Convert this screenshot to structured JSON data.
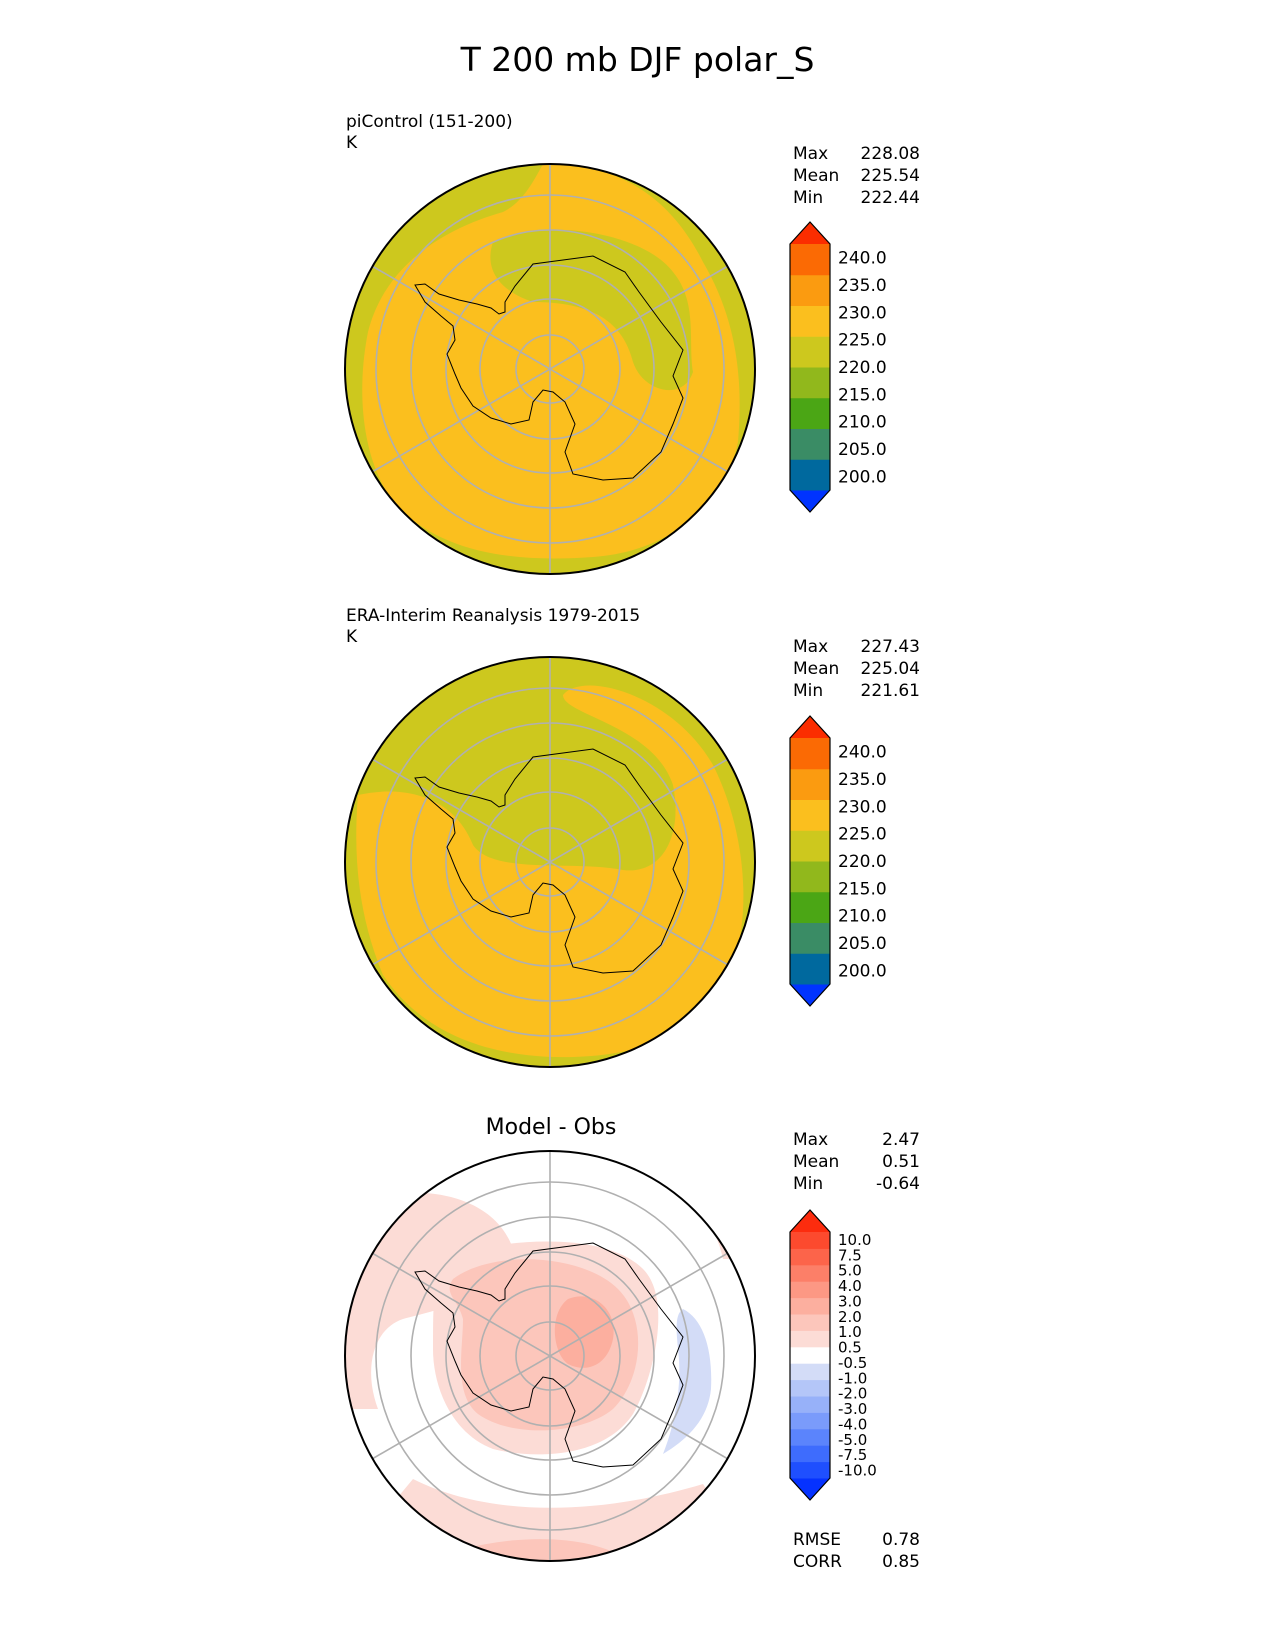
{
  "figure": {
    "title": "T 200 mb DJF polar_S"
  },
  "panels": [
    {
      "title": "piControl (151-200)",
      "units": "K",
      "stats": [
        {
          "label": "Max",
          "value": "228.08"
        },
        {
          "label": "Mean",
          "value": "225.54"
        },
        {
          "label": "Min",
          "value": "222.44"
        }
      ],
      "colorbar": {
        "labels": [
          "240.0",
          "235.0",
          "230.0",
          "225.0",
          "220.0",
          "215.0",
          "210.0",
          "205.0",
          "200.0"
        ],
        "colors": [
          "#0033ff",
          "#00699e",
          "#3a8c65",
          "#4ba615",
          "#91b81c",
          "#cdc81e",
          "#fbbf1e",
          "#fb9b10",
          "#fb6a04",
          "#fb2d00"
        ]
      }
    },
    {
      "title": "ERA-Interim Reanalysis 1979-2015",
      "units": "K",
      "stats": [
        {
          "label": "Max",
          "value": "227.43"
        },
        {
          "label": "Mean",
          "value": "225.04"
        },
        {
          "label": "Min",
          "value": "221.61"
        }
      ],
      "colorbar": {
        "labels": [
          "240.0",
          "235.0",
          "230.0",
          "225.0",
          "220.0",
          "215.0",
          "210.0",
          "205.0",
          "200.0"
        ],
        "colors": [
          "#0033ff",
          "#00699e",
          "#3a8c65",
          "#4ba615",
          "#91b81c",
          "#cdc81e",
          "#fbbf1e",
          "#fb9b10",
          "#fb6a04",
          "#fb2d00"
        ]
      }
    },
    {
      "title": "Model - Obs",
      "stats": [
        {
          "label": "Max",
          "value": "2.47"
        },
        {
          "label": "Mean",
          "value": "0.51"
        },
        {
          "label": "Min",
          "value": "-0.64"
        }
      ],
      "metrics": [
        {
          "label": "RMSE",
          "value": "0.78"
        },
        {
          "label": "CORR",
          "value": "0.85"
        }
      ],
      "colorbar": {
        "labels": [
          "10.0",
          "7.5",
          "5.0",
          "4.0",
          "3.0",
          "2.0",
          "1.0",
          "0.5",
          "-0.5",
          "-1.0",
          "-2.0",
          "-3.0",
          "-4.0",
          "-5.0",
          "-7.5",
          "-10.0"
        ],
        "colors": [
          "#0532ff",
          "#1f4ffe",
          "#3e6cfd",
          "#5b84fc",
          "#7a9bfb",
          "#97b1f9",
          "#b4c6f8",
          "#d3dcf7",
          "#ffffff",
          "#fcdcd6",
          "#fcc6bb",
          "#fcaf9f",
          "#fc9884",
          "#fc7f68",
          "#fc644a",
          "#fc4a2e",
          "#fc2c0e"
        ]
      }
    }
  ]
}
